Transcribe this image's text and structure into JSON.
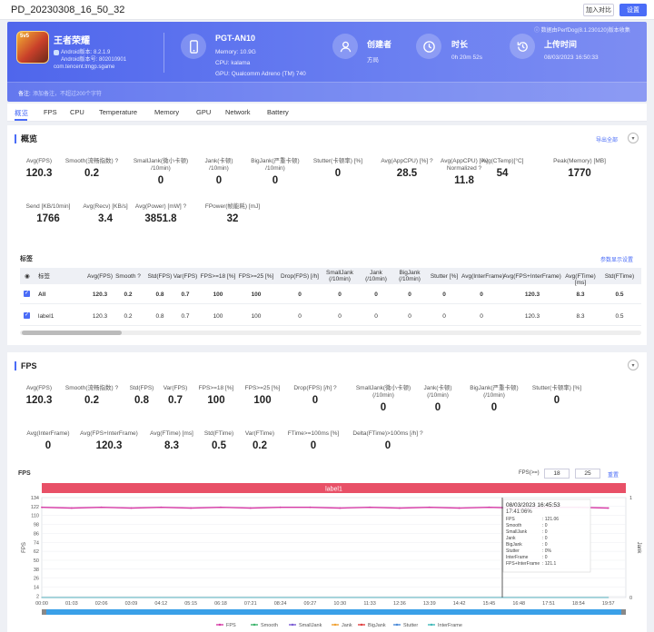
{
  "header": {
    "title": "PD_20230308_16_50_32",
    "compare_label": "加入对比",
    "settings_label": "设置"
  },
  "app": {
    "name": "王者荣耀",
    "logo_text": "5v5",
    "android_version": "Android版本: 8.2.1.9",
    "build_version": "Android版本号: 802010901",
    "package": "com.tencent.tmgp.sgame"
  },
  "device": {
    "name": "PGT-AN10",
    "memory": "Memory: 10.9G",
    "cpu": "CPU: kalama",
    "gpu": "GPU: Qualcomm Adreno (TM) 740"
  },
  "creator": {
    "label": "创建者",
    "value": "方局"
  },
  "duration": {
    "label": "时长",
    "value": "0h 20m 52s"
  },
  "upload": {
    "label": "上传时间",
    "value": "08/03/2023 16:50:33"
  },
  "perfdog_note": "ⓘ 数据由PerfDog(8.1.230120)版本收集",
  "note": {
    "label": "备注:",
    "placeholder": "添加备注，不超过200个字符"
  },
  "tabs": [
    "概览",
    "FPS",
    "CPU",
    "Temperature",
    "Memory",
    "GPU",
    "Network",
    "Battery"
  ],
  "overview": {
    "title": "概览",
    "export_label": "导出全部",
    "row1": [
      {
        "label": "Avg(FPS)",
        "value": "120.3"
      },
      {
        "label": "Smooth(流畅指数) ?",
        "value": "0.2"
      },
      {
        "label": "SmallJank(微小卡顿)\n/10min)",
        "value": "0"
      },
      {
        "label": "Jank(卡顿)\n/10min)",
        "value": "0"
      },
      {
        "label": "BigJank(严重卡顿)\n/10min)",
        "value": "0"
      },
      {
        "label": "Stutter(卡顿率) [%]",
        "value": "0"
      },
      {
        "label": "Avg(AppCPU) [%] ?",
        "value": "28.5"
      },
      {
        "label": "Avg(AppCPU) [%]\nNormalized ?",
        "value": "11.8"
      },
      {
        "label": "Avg(CTemp)[°C]",
        "value": "54"
      },
      {
        "label": "Peak(Memory) [MB]",
        "value": "1770"
      }
    ],
    "row2": [
      {
        "label": "Send [KB/10min]",
        "value": "1766"
      },
      {
        "label": "Avg(Recv) [KB/s]",
        "value": "3.4"
      },
      {
        "label": "Avg(Power) [mW] ?",
        "value": "3851.8"
      },
      {
        "label": "FPower(帧能耗) [mJ]",
        "value": "32"
      }
    ]
  },
  "labels": {
    "title": "标签",
    "settings_link": "参数显示设置",
    "columns": [
      "标签",
      "Avg(FPS)",
      "Smooth ?",
      "Std(FPS)",
      "Var(FPS)",
      "FPS>=18 [%]",
      "FPS>=25 [%]",
      "Drop(FPS) [/h]",
      "SmallJank\n(/10min)",
      "Jank\n(/10min)",
      "BigJank\n(/10min)",
      "Stutter [%]",
      "Avg(InterFrame)",
      "Avg(FPS+InterFrame)",
      "Avg(FTime) [ms]",
      "Std(FTime)"
    ],
    "rows": [
      [
        "All",
        "120.3",
        "0.2",
        "0.8",
        "0.7",
        "100",
        "100",
        "0",
        "0",
        "0",
        "0",
        "0",
        "0",
        "120.3",
        "8.3",
        "0.5"
      ],
      [
        "label1",
        "120.3",
        "0.2",
        "0.8",
        "0.7",
        "100",
        "100",
        "0",
        "0",
        "0",
        "0",
        "0",
        "0",
        "120.3",
        "8.3",
        "0.5"
      ]
    ]
  },
  "fps": {
    "title": "FPS",
    "row1": [
      {
        "label": "Avg(FPS)",
        "value": "120.3"
      },
      {
        "label": "Smooth(流畅指数) ?",
        "value": "0.2"
      },
      {
        "label": "Std(FPS)",
        "value": "0.8"
      },
      {
        "label": "Var(FPS)",
        "value": "0.7"
      },
      {
        "label": "FPS>=18 [%]",
        "value": "100"
      },
      {
        "label": "FPS>=25 [%]",
        "value": "100"
      },
      {
        "label": "Drop(FPS) [/h] ?",
        "value": "0"
      },
      {
        "label": "SmallJank(微小卡顿)\n(/10min)",
        "value": "0"
      },
      {
        "label": "Jank(卡顿)\n(/10min)",
        "value": "0"
      },
      {
        "label": "BigJank(严重卡顿)\n(/10min)",
        "value": "0"
      },
      {
        "label": "Stutter(卡顿率) [%]",
        "value": "0"
      }
    ],
    "row2": [
      {
        "label": "Avg(InterFrame)",
        "value": "0"
      },
      {
        "label": "Avg(FPS+InterFrame)",
        "value": "120.3"
      },
      {
        "label": "Avg(FTime) [ms]",
        "value": "8.3"
      },
      {
        "label": "Std(FTime)",
        "value": "0.5"
      },
      {
        "label": "Var(FTime)",
        "value": "0.2"
      },
      {
        "label": "FTime>=100ms [%]",
        "value": "0"
      },
      {
        "label": "Delta(FTime)>100ms [/h] ?",
        "value": "0"
      }
    ],
    "filter_label": "FPS(>=)",
    "filter_a": "18",
    "filter_b": "25",
    "reset_label": "重置"
  },
  "chart_data": {
    "type": "line",
    "title": "FPS",
    "band_label": "label1",
    "ylabel": "FPS",
    "y2label": "Jank",
    "ylim": [
      0,
      134
    ],
    "y_ticks": [
      "134",
      "122",
      "110",
      "98",
      "86",
      "74",
      "62",
      "50",
      "38",
      "26",
      "14",
      "2"
    ],
    "y2_ticks": [
      "1",
      "0"
    ],
    "x_ticks": [
      "00:00",
      "01:03",
      "02:06",
      "03:09",
      "04:12",
      "05:15",
      "06:18",
      "07:21",
      "08:24",
      "09:27",
      "10:30",
      "11:33",
      "12:36",
      "13:39",
      "14:42",
      "15:45",
      "16:48",
      "17:51",
      "18:54",
      "19:57"
    ],
    "series": [
      {
        "name": "FPS",
        "color": "#d63aa5",
        "values": [
          121,
          120,
          121,
          120,
          121,
          120,
          121,
          120,
          121,
          121,
          120,
          121,
          120,
          121,
          120,
          121,
          120,
          121,
          121,
          120
        ]
      },
      {
        "name": "Smooth",
        "color": "#3bb36a",
        "values": [
          0,
          0,
          0,
          0,
          0,
          0,
          0,
          0,
          0,
          0,
          0,
          0,
          0,
          0,
          0,
          0,
          0,
          0,
          0,
          0
        ]
      },
      {
        "name": "SmallJank",
        "color": "#7a5bd4",
        "values": [
          0,
          0,
          0,
          0,
          0,
          0,
          0,
          0,
          0,
          0,
          0,
          0,
          0,
          0,
          0,
          0,
          0,
          0,
          0,
          0
        ]
      },
      {
        "name": "Jank",
        "color": "#f0a030",
        "values": [
          0,
          0,
          0,
          0,
          0,
          0,
          0,
          0,
          0,
          0,
          0,
          0,
          0,
          0,
          0,
          0,
          0,
          0,
          0,
          0
        ]
      },
      {
        "name": "BigJank",
        "color": "#e04040",
        "values": [
          0,
          0,
          0,
          0,
          0,
          0,
          0,
          0,
          0,
          0,
          0,
          0,
          0,
          0,
          0,
          0,
          0,
          0,
          0,
          0
        ]
      },
      {
        "name": "Stutter",
        "color": "#4a8ad8",
        "values": [
          0,
          0,
          0,
          0,
          0,
          0,
          0,
          0,
          0,
          0,
          0,
          0,
          0,
          0,
          0,
          0,
          0,
          0,
          0,
          0
        ]
      },
      {
        "name": "InterFrame",
        "color": "#40b8b8",
        "values": [
          0,
          0,
          0,
          0,
          0,
          0,
          0,
          0,
          0,
          0,
          0,
          0,
          0,
          0,
          0,
          0,
          0,
          0,
          0,
          0
        ]
      }
    ],
    "tooltip": {
      "time": "08/03/2023 16:45:53",
      "label": "17:41:06%",
      "rows": [
        [
          "FPS",
          ": 121.06"
        ],
        [
          "Smooth",
          ": 0"
        ],
        [
          "SmallJank",
          ": 0"
        ],
        [
          "Jank",
          ": 0"
        ],
        [
          "BigJank",
          ": 0"
        ],
        [
          "Stutter",
          ": 0%"
        ],
        [
          "InterFrame",
          ": 0"
        ],
        [
          "FPS+InterFrame",
          ": 121.1"
        ]
      ]
    }
  }
}
